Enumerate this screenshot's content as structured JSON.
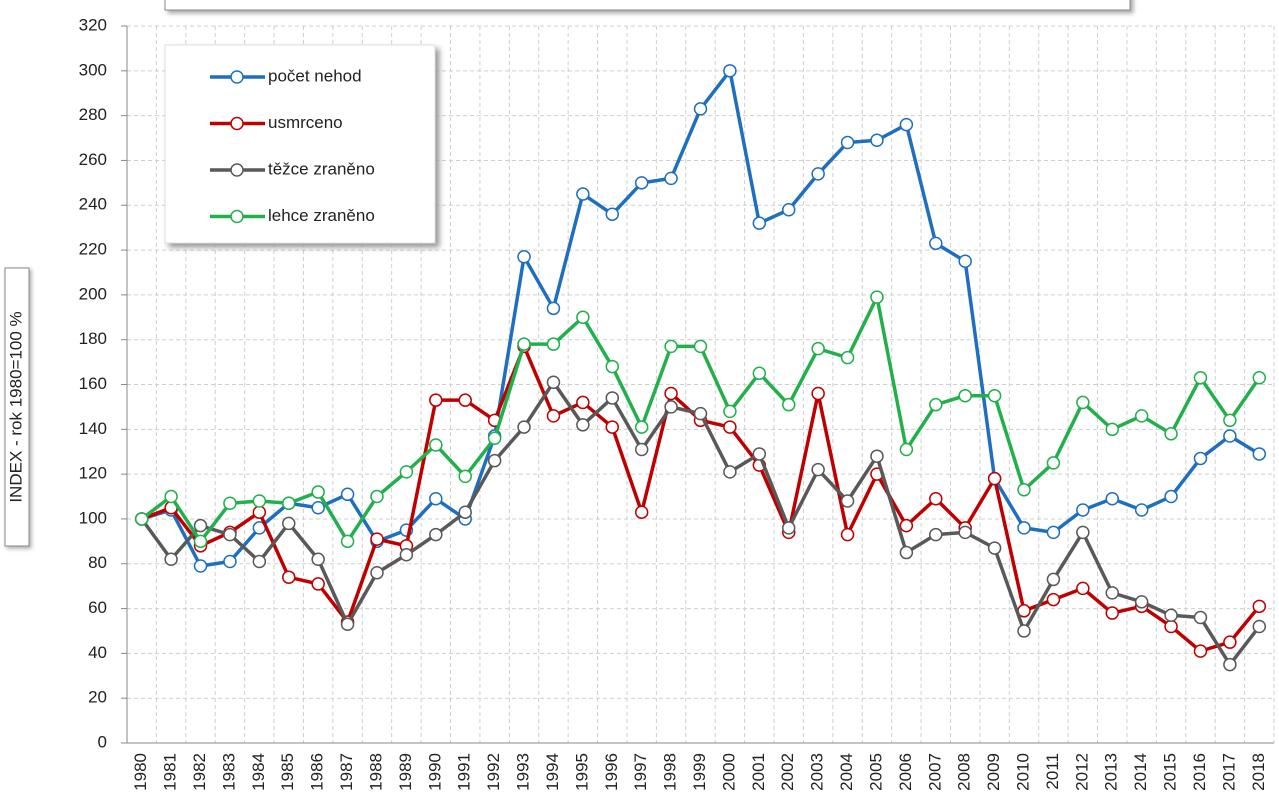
{
  "chart_data": {
    "type": "line",
    "y_label": "INDEX - rok 1980=100 %",
    "categories": [
      "1980",
      "1981",
      "1982",
      "1983",
      "1984",
      "1985",
      "1986",
      "1987",
      "1988",
      "1989",
      "1990",
      "1991",
      "1992",
      "1993",
      "1994",
      "1995",
      "1996",
      "1997",
      "1998",
      "1999",
      "2000",
      "2001",
      "2002",
      "2003",
      "2004",
      "2005",
      "2006",
      "2007",
      "2008",
      "2009",
      "2010",
      "2011",
      "2012",
      "2013",
      "2014",
      "2015",
      "2016",
      "2017",
      "2018"
    ],
    "series": [
      {
        "name": "počet nehod",
        "color": "#1f6fc0",
        "values": [
          100,
          104,
          79,
          81,
          96,
          107,
          105,
          111,
          90,
          95,
          109,
          100,
          137,
          217,
          194,
          245,
          236,
          250,
          252,
          283,
          300,
          232,
          238,
          254,
          268,
          269,
          276,
          223,
          215,
          118,
          96,
          94,
          104,
          109,
          104,
          110,
          127,
          137,
          129
        ]
      },
      {
        "name": "usmrceno",
        "color": "#c00000",
        "values": [
          100,
          105,
          88,
          94,
          103,
          74,
          71,
          54,
          91,
          88,
          153,
          153,
          144,
          177,
          146,
          152,
          141,
          103,
          156,
          144,
          141,
          124,
          94,
          156,
          93,
          120,
          97,
          109,
          96,
          118,
          59,
          64,
          69,
          58,
          61,
          52,
          41,
          45,
          61
        ]
      },
      {
        "name": "těžce zraněno",
        "color": "#595959",
        "values": [
          100,
          82,
          97,
          93,
          81,
          98,
          82,
          53,
          76,
          84,
          93,
          103,
          126,
          141,
          161,
          142,
          154,
          131,
          150,
          147,
          121,
          129,
          96,
          122,
          108,
          128,
          85,
          93,
          94,
          87,
          50,
          73,
          94,
          67,
          63,
          57,
          56,
          35,
          52
        ]
      },
      {
        "name": "lehce zraněno",
        "color": "#22b04b",
        "values": [
          100,
          110,
          90,
          107,
          108,
          107,
          112,
          90,
          110,
          121,
          133,
          119,
          136,
          178,
          178,
          190,
          168,
          141,
          177,
          177,
          148,
          165,
          151,
          176,
          172,
          199,
          131,
          151,
          155,
          155,
          113,
          125,
          152,
          140,
          146,
          138,
          163,
          144,
          163
        ]
      }
    ],
    "ylim": [
      0,
      320
    ],
    "yticks": [
      0,
      20,
      40,
      60,
      80,
      100,
      120,
      140,
      160,
      180,
      200,
      220,
      240,
      260,
      280,
      300,
      320
    ],
    "grid": true,
    "legend": "upper left"
  }
}
